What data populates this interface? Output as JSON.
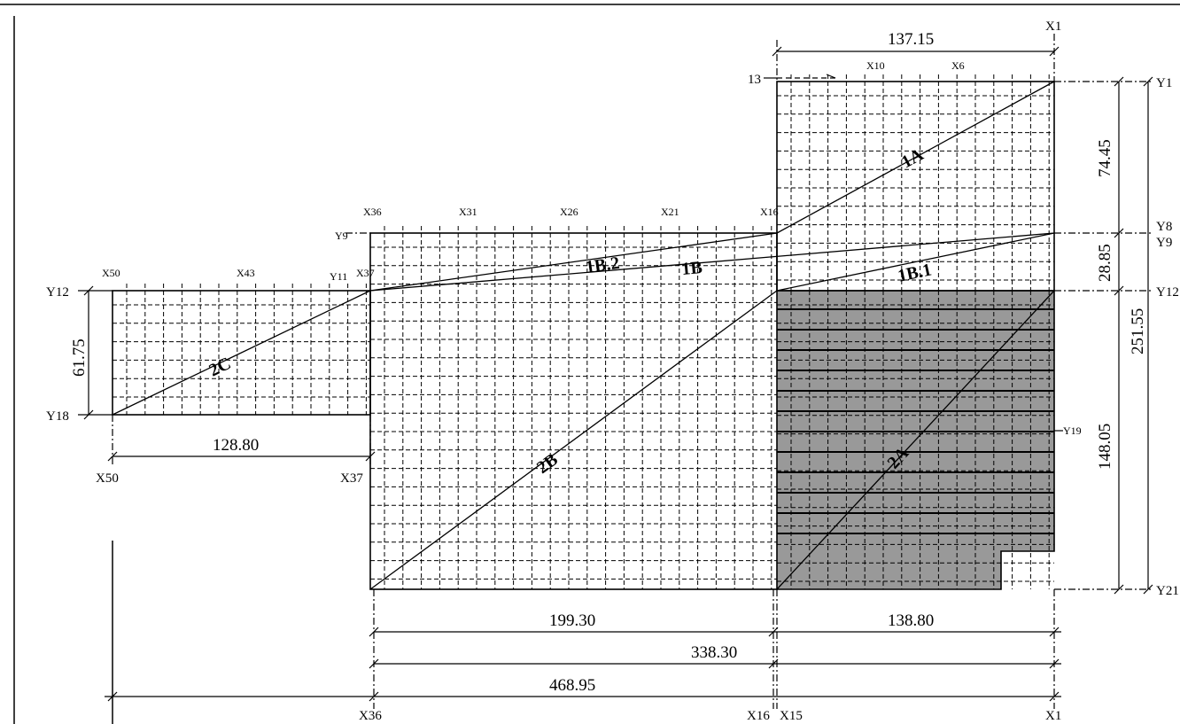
{
  "colors": {
    "line": "#000000",
    "shade": "#999999",
    "background": "#ffffff"
  },
  "dimensions": {
    "top_width": "137.15",
    "right_74": "74.45",
    "right_28": "28.85",
    "right_251": "251.55",
    "right_148": "148.05",
    "left_height": "61.75",
    "left_width": "128.80",
    "bottom_199": "199.30",
    "bottom_138": "138.80",
    "bottom_338": "338.30",
    "bottom_468": "468.95"
  },
  "axis_labels": {
    "X1_top": "X1",
    "X10": "X10",
    "X6": "X6",
    "thirteen": "13",
    "Y1": "Y1",
    "Y8": "Y8",
    "Y9_right": "Y9",
    "Y12_right": "Y12",
    "Y21": "Y21",
    "Y19": "Y19",
    "X36_top": "X36",
    "X31": "X31",
    "X26": "X26",
    "X21": "X21",
    "X16_top": "X16",
    "Y9_left": "Y9",
    "X50_top": "X50",
    "X43": "X43",
    "Y11": "Y11",
    "X37_top": "X37",
    "Y12_left": "Y12",
    "Y18": "Y18",
    "X50_bottom": "X50",
    "X37_bottom": "X37",
    "X36_bottom": "X36",
    "X16_bottom": "X16",
    "X15": "X15",
    "X1_bottom": "X1"
  },
  "areas": {
    "a1A": "1A",
    "a1B2": "1B.2",
    "a1B": "1B",
    "a1B1": "1B.1",
    "a2C": "2C",
    "a2B": "2B",
    "a2A": "2A"
  }
}
